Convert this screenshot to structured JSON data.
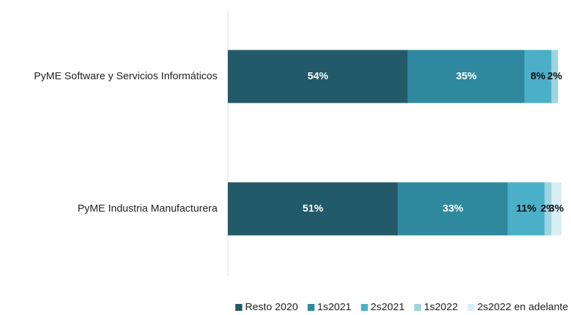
{
  "chart_data": {
    "type": "stacked_bar_horizontal",
    "categories": [
      "PyME Software y Servicios Informáticos",
      "PyME Industria Manufacturera"
    ],
    "series": [
      {
        "name": "Resto 2020",
        "color": "#235a6a",
        "values": [
          54,
          51
        ],
        "value_labels": [
          "54%",
          "51%"
        ]
      },
      {
        "name": "1s2021",
        "color": "#2e889e",
        "values": [
          35,
          33
        ],
        "value_labels": [
          "35%",
          "33%"
        ]
      },
      {
        "name": "2s2021",
        "color": "#4bafc8",
        "values": [
          8,
          11
        ],
        "value_labels": [
          "8%",
          "11%"
        ]
      },
      {
        "name": "1s2022",
        "color": "#9fd3e0",
        "values": [
          2,
          2
        ],
        "value_labels": [
          "2%",
          "2%"
        ]
      },
      {
        "name": "2s2022 en adelante",
        "color": "#d8eef4",
        "values": [
          null,
          3
        ],
        "value_labels": [
          null,
          "3%"
        ]
      }
    ],
    "xlim": [
      0,
      100
    ],
    "legend": "bottom"
  }
}
